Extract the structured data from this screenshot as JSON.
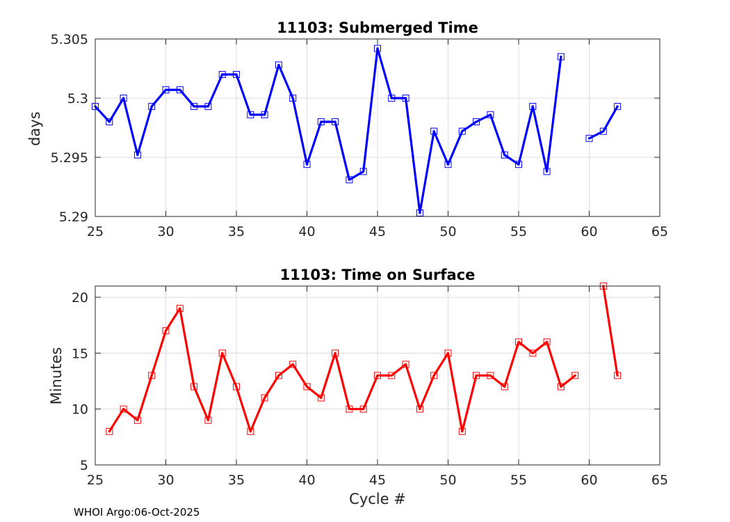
{
  "footer": "WHOI Argo:06-Oct-2025",
  "chart_data": [
    {
      "type": "line",
      "title": "11103: Submerged Time",
      "xlabel": "",
      "ylabel": "days",
      "xlim": [
        25,
        65
      ],
      "ylim": [
        5.29,
        5.305
      ],
      "xticks": [
        25,
        30,
        35,
        40,
        45,
        50,
        55,
        60,
        65
      ],
      "xtick_labels": [
        "25",
        "30",
        "35",
        "40",
        "45",
        "50",
        "55",
        "60",
        "65"
      ],
      "yticks": [
        5.29,
        5.295,
        5.3,
        5.305
      ],
      "ytick_labels": [
        "5.29",
        "5.295",
        "5.3",
        "5.305"
      ],
      "grid": true,
      "color": "#0000ff",
      "marker": "square",
      "series": [
        {
          "segments": [
            {
              "x": [
                25,
                26,
                27,
                28,
                29,
                30,
                31,
                32,
                33,
                34,
                35,
                36,
                37,
                38,
                39,
                40,
                41,
                42,
                43,
                44,
                45,
                46,
                47,
                48,
                49,
                50,
                51,
                52,
                53,
                54,
                55,
                56,
                57,
                58
              ],
              "y": [
                5.2993,
                5.298,
                5.3,
                5.2952,
                5.2993,
                5.3007,
                5.3007,
                5.2993,
                5.2993,
                5.302,
                5.302,
                5.2986,
                5.2986,
                5.3028,
                5.3,
                5.2944,
                5.298,
                5.298,
                5.2931,
                5.2938,
                5.3042,
                5.3,
                5.3,
                5.2903,
                5.2972,
                5.2944,
                5.2972,
                5.298,
                5.2986,
                5.2952,
                5.2944,
                5.2993,
                5.2938,
                5.3035
              ]
            },
            {
              "x": [
                60,
                61,
                62
              ],
              "y": [
                5.2966,
                5.2972,
                5.2993
              ]
            }
          ]
        }
      ]
    },
    {
      "type": "line",
      "title": "11103: Time on Surface",
      "xlabel": "Cycle #",
      "ylabel": "Minutes",
      "xlim": [
        25,
        65
      ],
      "ylim": [
        5,
        21
      ],
      "xticks": [
        25,
        30,
        35,
        40,
        45,
        50,
        55,
        60,
        65
      ],
      "xtick_labels": [
        "25",
        "30",
        "35",
        "40",
        "45",
        "50",
        "55",
        "60",
        "65"
      ],
      "yticks": [
        5,
        10,
        15,
        20
      ],
      "ytick_labels": [
        "5",
        "10",
        "15",
        "20"
      ],
      "grid": true,
      "color": "#ff0000",
      "marker": "square",
      "series": [
        {
          "segments": [
            {
              "x": [
                26,
                27,
                28,
                29,
                30,
                31,
                32,
                33,
                34,
                35,
                36,
                37,
                38,
                39,
                40,
                41,
                42,
                43,
                44,
                45,
                46,
                47,
                48,
                49,
                50,
                51,
                52,
                53,
                54,
                55,
                56,
                57,
                58,
                59
              ],
              "y": [
                8,
                10,
                9,
                13,
                17,
                19,
                12,
                9,
                15,
                12,
                8,
                11,
                13,
                14,
                12,
                11,
                15,
                10,
                10,
                13,
                13,
                14,
                10,
                13,
                15,
                8,
                13,
                13,
                12,
                16,
                15,
                16,
                12,
                13
              ]
            },
            {
              "x": [
                61,
                62
              ],
              "y": [
                21,
                13
              ]
            }
          ]
        }
      ]
    }
  ]
}
